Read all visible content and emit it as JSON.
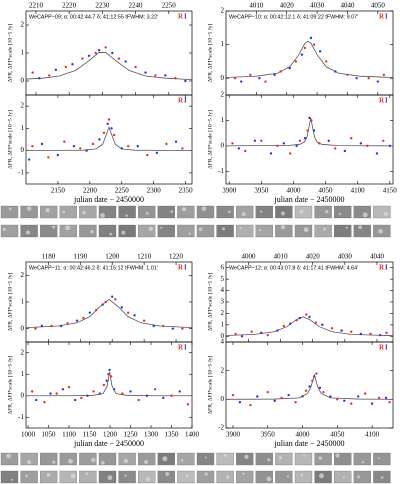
{
  "chart_data": [
    {
      "type": "scatter",
      "title": "WeCAPP−09:   α: 00:42:44.7   δ: 41:12:55   tFWHM: 3.22'",
      "ylabel": "ΔFR, ΔFI*scale [10−5 Jy]",
      "xlim": [
        2207,
        2257
      ],
      "xticks": [
        2210,
        2220,
        2230,
        2240,
        2250
      ],
      "ylim": [
        -0.5,
        2.5
      ],
      "yticks": [
        0,
        1,
        2
      ],
      "series": [
        {
          "name": "R",
          "color": "#e8302a",
          "x": [
            2209,
            2214,
            2219,
            2224,
            2228,
            2231,
            2235,
            2240,
            2246,
            2252
          ],
          "values": [
            0.3,
            0.2,
            0.5,
            0.8,
            1.0,
            1.2,
            0.8,
            0.5,
            0.2,
            0.1
          ]
        },
        {
          "name": "I",
          "color": "#2a36d8",
          "x": [
            2211,
            2216,
            2221,
            2226,
            2229,
            2233,
            2237,
            2243,
            2249,
            2255
          ],
          "values": [
            0.1,
            0.4,
            0.6,
            0.9,
            1.1,
            1.0,
            0.7,
            0.3,
            0.2,
            0.0
          ]
        }
      ],
      "fit": {
        "color": "#555555",
        "x": [
          2207,
          2212,
          2217,
          2222,
          2226,
          2229,
          2231,
          2234,
          2238,
          2243,
          2249,
          2257
        ],
        "values": [
          0.07,
          0.1,
          0.18,
          0.38,
          0.73,
          1.02,
          1.02,
          0.73,
          0.38,
          0.18,
          0.1,
          0.05
        ]
      }
    },
    {
      "type": "scatter",
      "ylabel": "ΔFR, ΔFI*scale [10−5 Jy]",
      "xlabel": "julian date − 2450000",
      "xlim": [
        2100,
        2360
      ],
      "xticks": [
        2150,
        2200,
        2250,
        2300,
        2350
      ],
      "ylim": [
        -1.5,
        2.5
      ],
      "yticks": [
        -1,
        0,
        1,
        2
      ],
      "series": [
        {
          "name": "R",
          "color": "#e8302a",
          "x": [
            2110,
            2135,
            2160,
            2185,
            2205,
            2222,
            2230,
            2238,
            2260,
            2290,
            2320,
            2345
          ],
          "values": [
            0.2,
            -0.3,
            0.4,
            0.1,
            0.3,
            0.8,
            1.4,
            0.7,
            0.2,
            -0.2,
            0.3,
            0.1
          ]
        },
        {
          "name": "I",
          "color": "#2a36d8",
          "x": [
            2105,
            2125,
            2150,
            2175,
            2195,
            2215,
            2228,
            2234,
            2250,
            2275,
            2305,
            2335
          ],
          "values": [
            -0.4,
            0.3,
            -0.2,
            0.2,
            0.0,
            0.5,
            1.2,
            1.0,
            0.1,
            0.2,
            -0.1,
            0.4
          ]
        }
      ],
      "fit": {
        "color": "#555555",
        "x": [
          2100,
          2150,
          2190,
          2210,
          2220,
          2226,
          2230,
          2234,
          2240,
          2250,
          2270,
          2310,
          2360
        ],
        "values": [
          0.0,
          0.01,
          0.02,
          0.08,
          0.28,
          0.73,
          1.05,
          0.73,
          0.28,
          0.08,
          0.02,
          0.01,
          0.0
        ]
      }
    },
    {
      "type": "scatter",
      "title": "WeCAPP−10:   α: 00:42:12.1   δ: 41:09:22   tFWHM: 9.07'",
      "ylabel": "ΔFR, ΔFI*scale [10−5 Jy]",
      "xlim": [
        4000,
        4055
      ],
      "xticks": [
        4010,
        4020,
        4030,
        4040,
        4050
      ],
      "ylim": [
        -0.5,
        2
      ],
      "yticks": [
        0,
        1,
        2
      ],
      "series": [
        {
          "name": "R",
          "color": "#e8302a",
          "x": [
            4003,
            4008,
            4013,
            4018,
            4023,
            4026,
            4029,
            4033,
            4040,
            4047,
            4052
          ],
          "values": [
            0.0,
            0.1,
            -0.1,
            0.2,
            0.5,
            0.9,
            1.0,
            0.5,
            0.1,
            0.0,
            0.1
          ]
        },
        {
          "name": "I",
          "color": "#2a36d8",
          "x": [
            4005,
            4011,
            4016,
            4021,
            4025,
            4028,
            4031,
            4036,
            4043,
            4050
          ],
          "values": [
            -0.1,
            0.0,
            0.1,
            0.3,
            0.7,
            1.2,
            0.8,
            0.2,
            0.0,
            -0.1
          ]
        }
      ],
      "fit": {
        "color": "#555555",
        "x": [
          4000,
          4010,
          4017,
          4021,
          4024,
          4026,
          4027,
          4028,
          4030,
          4033,
          4037,
          4044,
          4055
        ],
        "values": [
          0.02,
          0.06,
          0.15,
          0.34,
          0.7,
          1.04,
          1.1,
          1.04,
          0.7,
          0.34,
          0.15,
          0.06,
          0.02
        ]
      }
    },
    {
      "type": "scatter",
      "ylabel": "ΔFR, ΔFI*scale [10−5 Jy]",
      "xlabel": "julian date − 2450000",
      "xlim": [
        3895,
        4155
      ],
      "xticks": [
        3900,
        3950,
        4000,
        4050,
        4100,
        4150
      ],
      "ylim": [
        -1.5,
        2
      ],
      "yticks": [
        -1,
        0,
        1,
        2
      ],
      "series": [
        {
          "name": "R",
          "color": "#e8302a",
          "x": [
            3905,
            3925,
            3950,
            3975,
            3995,
            4010,
            4022,
            4028,
            4040,
            4065,
            4090,
            4115,
            4140
          ],
          "values": [
            0.1,
            -0.2,
            0.2,
            0.0,
            -0.3,
            0.2,
            0.6,
            1.0,
            0.1,
            -0.1,
            0.3,
            0.0,
            0.2
          ]
        },
        {
          "name": "I",
          "color": "#2a36d8",
          "x": [
            3915,
            3940,
            3965,
            3985,
            4005,
            4018,
            4025,
            4032,
            4055,
            4080,
            4105,
            4130,
            4150
          ],
          "values": [
            -0.1,
            0.2,
            -0.3,
            0.1,
            0.0,
            0.3,
            1.1,
            0.6,
            0.2,
            -0.2,
            0.1,
            -0.3,
            0.0
          ]
        }
      ],
      "fit": {
        "color": "#555555",
        "x": [
          3895,
          3950,
          3990,
          4010,
          4017,
          4021,
          4024,
          4027,
          4030,
          4033,
          4037,
          4044,
          4070,
          4155
        ],
        "values": [
          0.0,
          0.01,
          0.01,
          0.06,
          0.15,
          0.34,
          0.7,
          1.1,
          0.7,
          0.34,
          0.15,
          0.06,
          0.01,
          0.0
        ]
      }
    },
    {
      "type": "scatter",
      "title": "WeCAPP−11:   α: 00:42:46.2   δ: 41:15:12   tFWHM: 1.01'",
      "ylabel": "ΔFR, ΔFI*scale [10−5 Jy]",
      "xlim": [
        1173,
        1225
      ],
      "xticks": [
        1180,
        1190,
        1200,
        1210,
        1220
      ],
      "ylim": [
        -0.5,
        2.5
      ],
      "yticks": [
        0,
        1,
        2
      ],
      "series": [
        {
          "name": "R",
          "color": "#e8302a",
          "x": [
            1176,
            1181,
            1186,
            1191,
            1195,
            1198,
            1201,
            1205,
            1210,
            1216,
            1222
          ],
          "values": [
            0.0,
            0.1,
            0.2,
            0.4,
            0.7,
            1.0,
            1.1,
            0.6,
            0.3,
            0.1,
            0.0
          ]
        },
        {
          "name": "I",
          "color": "#2a36d8",
          "x": [
            1178,
            1184,
            1189,
            1193,
            1197,
            1200,
            1203,
            1207,
            1213,
            1219
          ],
          "values": [
            0.1,
            0.1,
            0.3,
            0.6,
            0.9,
            1.2,
            0.8,
            0.5,
            0.1,
            0.0
          ]
        }
      ],
      "fit": {
        "color": "#555555",
        "x": [
          1173,
          1183,
          1189,
          1193,
          1196,
          1199,
          1202,
          1205,
          1209,
          1215,
          1225
        ],
        "values": [
          0.04,
          0.1,
          0.22,
          0.45,
          0.81,
          1.1,
          0.81,
          0.45,
          0.22,
          0.1,
          0.04
        ]
      }
    },
    {
      "type": "scatter",
      "ylabel": "ΔFR, ΔFI*scale [10−5 Jy]",
      "xlabel": "julian date − 2450000",
      "xlim": [
        995,
        1400
      ],
      "xticks": [
        1000,
        1050,
        1100,
        1150,
        1200,
        1250,
        1300,
        1350,
        1400
      ],
      "ylim": [
        -1.5,
        2.5
      ],
      "yticks": [
        -1,
        0,
        1,
        2
      ],
      "series": [
        {
          "name": "R",
          "color": "#e8302a",
          "x": [
            1010,
            1040,
            1070,
            1100,
            1130,
            1160,
            1185,
            1196,
            1203,
            1230,
            1270,
            1310,
            1350,
            1390
          ],
          "values": [
            0.2,
            -0.3,
            0.1,
            0.4,
            -0.1,
            0.2,
            0.5,
            1.0,
            0.9,
            0.1,
            -0.2,
            0.3,
            0.0,
            -0.4
          ]
        },
        {
          "name": "I",
          "color": "#2a36d8",
          "x": [
            1020,
            1055,
            1085,
            1115,
            1145,
            1175,
            1192,
            1199,
            1210,
            1250,
            1290,
            1330,
            1370
          ],
          "values": [
            -0.2,
            0.1,
            0.3,
            -0.2,
            0.0,
            0.1,
            0.7,
            1.2,
            0.3,
            0.2,
            0.0,
            -0.1,
            0.2
          ]
        }
      ],
      "fit": {
        "color": "#555555",
        "x": [
          995,
          1100,
          1160,
          1183,
          1193,
          1199,
          1205,
          1215,
          1240,
          1300,
          1400
        ],
        "values": [
          0.0,
          0.0,
          0.02,
          0.1,
          0.45,
          1.1,
          0.45,
          0.1,
          0.02,
          0.0,
          0.0
        ]
      }
    },
    {
      "type": "scatter",
      "title": "WeCAPP−12:   α: 00:43:07.8   δ: 41:17:41   tFWHM: 4.64'",
      "ylabel": "ΔFR, ΔFI*scale [10−5 Jy]",
      "xlim": [
        3993,
        4045
      ],
      "xticks": [
        4000,
        4010,
        4020,
        4030,
        4040
      ],
      "ylim": [
        -0.5,
        6.5
      ],
      "yticks": [
        0,
        1,
        2,
        3,
        4,
        5,
        6
      ],
      "series": [
        {
          "name": "R",
          "color": "#e8302a",
          "x": [
            3996,
            4001,
            4006,
            4011,
            4015,
            4018,
            4021,
            4026,
            4032,
            4038,
            4043
          ],
          "values": [
            0.2,
            0.4,
            0.1,
            0.9,
            1.4,
            1.9,
            1.2,
            0.7,
            0.4,
            0.2,
            0.3
          ]
        },
        {
          "name": "I",
          "color": "#2a36d8",
          "x": [
            3998,
            4004,
            4009,
            4013,
            4016,
            4019,
            4023,
            4029,
            4035,
            4041
          ],
          "values": [
            0.0,
            0.3,
            0.5,
            1.1,
            1.6,
            1.7,
            1.0,
            0.5,
            0.2,
            0.1
          ]
        }
      ],
      "fit": {
        "color": "#555555",
        "x": [
          3993,
          4002,
          4008,
          4012,
          4015,
          4017,
          4019,
          4022,
          4026,
          4032,
          4045
        ],
        "values": [
          0.07,
          0.17,
          0.4,
          0.85,
          1.47,
          1.7,
          1.47,
          0.85,
          0.4,
          0.17,
          0.05
        ]
      }
    },
    {
      "type": "scatter",
      "ylabel": "ΔFR, ΔFI*scale [10−5 Jy]",
      "xlabel": "julian date − 2450000",
      "xlim": [
        3890,
        4130
      ],
      "xticks": [
        3900,
        3950,
        4000,
        4050,
        4100
      ],
      "ylim": [
        -2,
        4
      ],
      "yticks": [
        -2,
        0,
        2,
        4
      ],
      "series": [
        {
          "name": "R",
          "color": "#e8302a",
          "x": [
            3900,
            3925,
            3950,
            3970,
            3990,
            4005,
            4014,
            4020,
            4030,
            4050,
            4070,
            4090,
            4110,
            4125
          ],
          "values": [
            0.3,
            -0.4,
            0.5,
            0.1,
            -0.2,
            0.6,
            1.3,
            1.8,
            0.5,
            0.0,
            -0.3,
            0.4,
            0.1,
            -0.2
          ]
        },
        {
          "name": "I",
          "color": "#2a36d8",
          "x": [
            3910,
            3935,
            3960,
            3980,
            4000,
            4010,
            4017,
            4025,
            4040,
            4060,
            4080,
            4100,
            4120
          ],
          "values": [
            -0.2,
            0.2,
            -0.1,
            0.3,
            0.2,
            0.9,
            1.6,
            0.8,
            0.2,
            -0.1,
            0.2,
            -0.3,
            0.1
          ]
        }
      ],
      "fit": {
        "color": "#555555",
        "x": [
          3890,
          3960,
          3995,
          4007,
          4012,
          4017,
          4022,
          4027,
          4040,
          4080,
          4130
        ],
        "values": [
          0.0,
          0.02,
          0.1,
          0.4,
          0.85,
          1.7,
          0.85,
          0.4,
          0.1,
          0.02,
          0.0
        ]
      }
    }
  ]
}
